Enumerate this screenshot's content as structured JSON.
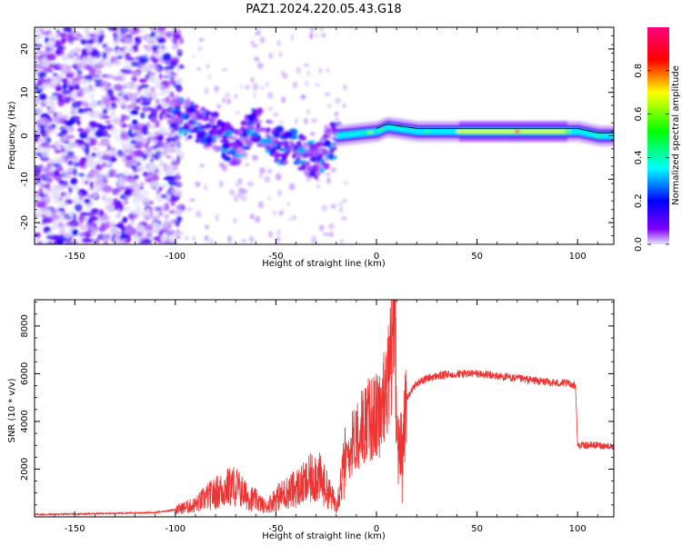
{
  "figure": {
    "title": "PAZ1.2024.220.05.43.G18"
  },
  "chart_data": [
    {
      "type": "heatmap",
      "xlabel": "Height of straight line (km)",
      "ylabel": "Frequency (Hz)",
      "xlim": [
        -170,
        118
      ],
      "ylim": [
        -25,
        25
      ],
      "xticks": [
        -150,
        -100,
        -50,
        0,
        50,
        100
      ],
      "yticks": [
        -20,
        -10,
        0,
        10,
        20
      ],
      "colorbar": {
        "label": "Normalized spectral amplitude",
        "range": [
          0,
          1
        ],
        "ticks": [
          0.0,
          0.2,
          0.4,
          0.6,
          0.8
        ],
        "colormap": "gist_rainbow_r",
        "colors": [
          "#e6e6fa",
          "#8000ff",
          "#0000ff",
          "#00ffff",
          "#00ff00",
          "#ffff00",
          "#ff0000",
          "#ff0080"
        ]
      },
      "ridge": [
        {
          "x": -100,
          "freq": 5
        },
        {
          "x": -90,
          "freq": 3
        },
        {
          "x": -80,
          "freq": 1
        },
        {
          "x": -70,
          "freq": -3
        },
        {
          "x": -60,
          "freq": 3
        },
        {
          "x": -50,
          "freq": -2
        },
        {
          "x": -40,
          "freq": -3
        },
        {
          "x": -30,
          "freq": -6
        },
        {
          "x": -20,
          "freq": 0
        },
        {
          "x": 0,
          "freq": 1
        },
        {
          "x": 5,
          "freq": 2
        },
        {
          "x": 20,
          "freq": 1
        },
        {
          "x": 50,
          "freq": 1
        },
        {
          "x": 90,
          "freq": 1
        },
        {
          "x": 100,
          "freq": 1
        },
        {
          "x": 110,
          "freq": 0
        }
      ]
    },
    {
      "type": "line",
      "xlabel": "Height of straight line (km)",
      "ylabel": "SNR (10 * v/v)",
      "xlim": [
        -170,
        118
      ],
      "ylim": [
        0,
        9100
      ],
      "xticks": [
        -150,
        -100,
        -50,
        0,
        50,
        100
      ],
      "yticks": [
        2000,
        4000,
        6000,
        8000
      ],
      "color": "#ee3333",
      "series": [
        {
          "x": [
            -170,
            -150,
            -130,
            -110,
            -100,
            -90,
            -85,
            -80,
            -75,
            -70,
            -65,
            -60,
            -55,
            -50,
            -45,
            -40,
            -35,
            -30,
            -25,
            -20,
            -15,
            -10,
            -5,
            0,
            5,
            8,
            9,
            10,
            11,
            12,
            13,
            15,
            20,
            25,
            30,
            40,
            50,
            60,
            70,
            80,
            90,
            95,
            99,
            100,
            105,
            110,
            118
          ],
          "y": [
            100,
            120,
            150,
            180,
            300,
            500,
            800,
            1000,
            1200,
            1300,
            900,
            700,
            400,
            800,
            1000,
            1200,
            1400,
            1800,
            1200,
            500,
            2500,
            3500,
            4000,
            4200,
            5000,
            8000,
            9000,
            4000,
            2000,
            1000,
            3000,
            5000,
            5600,
            5800,
            5900,
            6000,
            6000,
            5900,
            5800,
            5700,
            5600,
            5600,
            5500,
            3000,
            3000,
            3000,
            2950
          ]
        }
      ]
    }
  ]
}
